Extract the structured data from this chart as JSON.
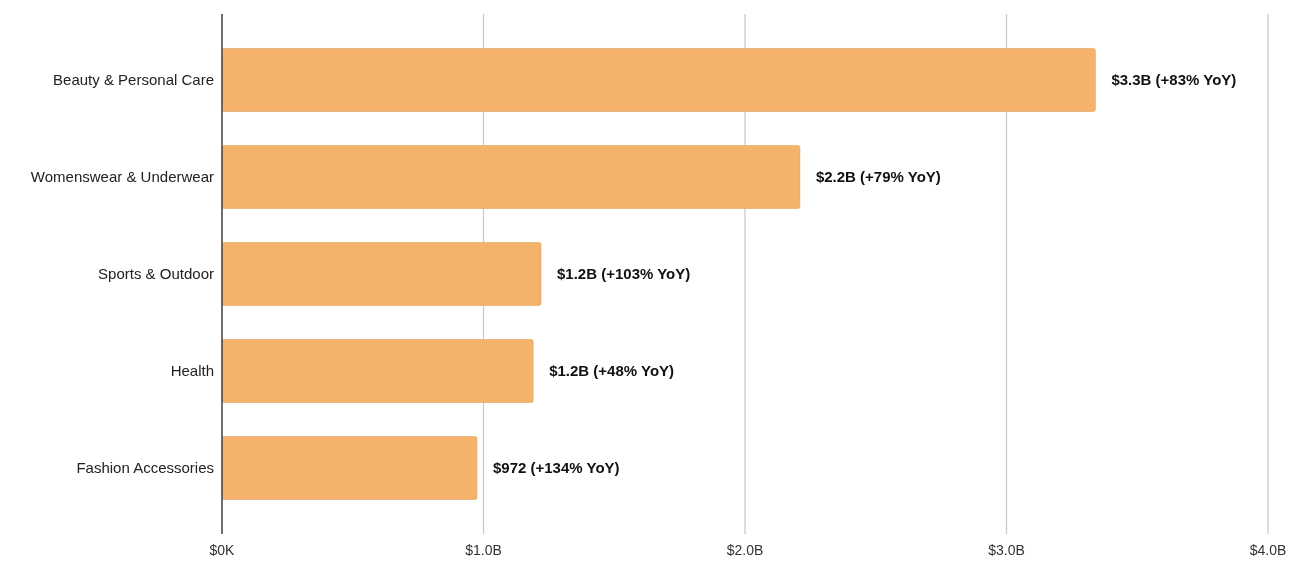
{
  "chart_data": {
    "type": "bar",
    "orientation": "horizontal",
    "categories": [
      "Beauty & Personal Care",
      "Womenswear & Underwear",
      "Sports & Outdoor",
      "Health",
      "Fashion Accessories"
    ],
    "values": [
      3.34,
      2.21,
      1.22,
      1.19,
      0.975
    ],
    "annotations": [
      {
        "text": "$3.3B (+83% YoY)",
        "x": 3.34,
        "y": "Beauty & Personal Care"
      },
      {
        "text": "$2.2B (+79% YoY)",
        "x": 2.21,
        "y": "Womenswear & Underwear"
      },
      {
        "text": "$1.2B (+103% YoY)",
        "x": 1.22,
        "y": "Sports & Outdoor"
      },
      {
        "text": "$1.2B (+48% YoY)",
        "x": 1.19,
        "y": "Health"
      },
      {
        "text": "$972 (+134% YoY)",
        "x": 0.975,
        "y": "Fashion Accessories"
      }
    ],
    "color": "#f5b26b",
    "xlim": [
      0,
      4
    ],
    "xticks": [
      {
        "value": 0,
        "label": "$0K"
      },
      {
        "value": 1,
        "label": "$1.0B"
      },
      {
        "value": 2,
        "label": "$2.0B"
      },
      {
        "value": 3,
        "label": "$3.0B"
      },
      {
        "value": 4,
        "label": "$4.0B"
      }
    ],
    "grid": "x"
  }
}
